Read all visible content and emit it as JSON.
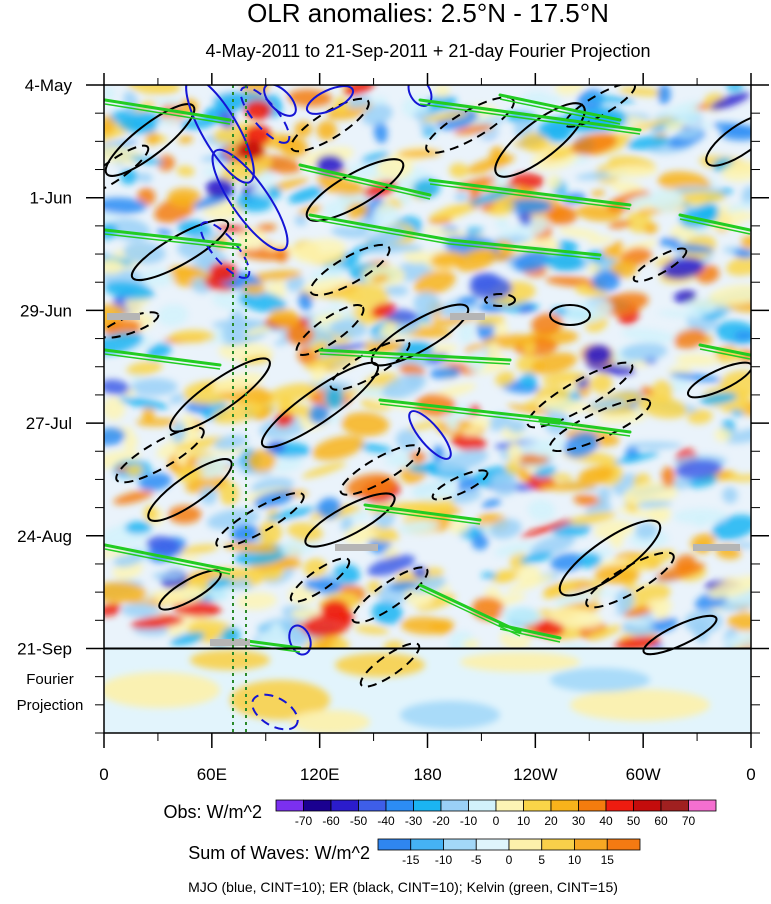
{
  "chart_data": {
    "type": "heatmap",
    "title": "OLR anomalies: 2.5°N - 17.5°N",
    "subtitle": "4-May-2011 to 21-Sep-2011 + 21-day Fourier Projection",
    "x_ticks": [
      "0",
      "60E",
      "120E",
      "180",
      "120W",
      "60W",
      "0"
    ],
    "x_tick_degrees_east": [
      0,
      60,
      120,
      180,
      240,
      300,
      360
    ],
    "xlim_degrees_east": [
      0,
      360
    ],
    "y_ticks": [
      "4-May",
      "1-Jun",
      "29-Jun",
      "27-Jul",
      "24-Aug",
      "21-Sep"
    ],
    "y_tick_day_offsets": [
      0,
      28,
      56,
      84,
      112,
      140
    ],
    "ylim_day_offsets": [
      0,
      161
    ],
    "projection_label": [
      "Fourier",
      "Projection"
    ],
    "projection_start_day": 140,
    "obs_colorbar": {
      "label": "Obs: W/m^2",
      "levels": [
        "-70",
        "-60",
        "-50",
        "-40",
        "-30",
        "-20",
        "-10",
        "0",
        "10",
        "20",
        "30",
        "40",
        "50",
        "60",
        "70"
      ],
      "colors": [
        "#7b30f0",
        "#1a0090",
        "#2b1ccc",
        "#3e5ee8",
        "#2c8cf5",
        "#1bb4f2",
        "#9ad0f7",
        "#d2f2fb",
        "#fdf5b5",
        "#f9d548",
        "#f8b31b",
        "#f47c0e",
        "#ee1c10",
        "#c40c0c",
        "#a02020",
        "#f56fd0"
      ]
    },
    "waves_colorbar": {
      "label": "Sum of Waves: W/m^2",
      "levels": [
        "-15",
        "-10",
        "-5",
        "0",
        "5",
        "10",
        "15"
      ],
      "colors": [
        "#2f86f0",
        "#45b2f5",
        "#a3d8f8",
        "#dff5fc",
        "#fdf1ab",
        "#f8d04a",
        "#f7a723",
        "#f47a12"
      ]
    },
    "series": [
      {
        "name": "MJO",
        "color": "blue",
        "cint": 10
      },
      {
        "name": "ER",
        "color": "black",
        "cint": 10
      },
      {
        "name": "Kelvin",
        "color": "green",
        "cint": 15
      }
    ],
    "legend_text": "MJO (blue, CINT=10); ER (black, CINT=10); Kelvin (green, CINT=15)"
  }
}
